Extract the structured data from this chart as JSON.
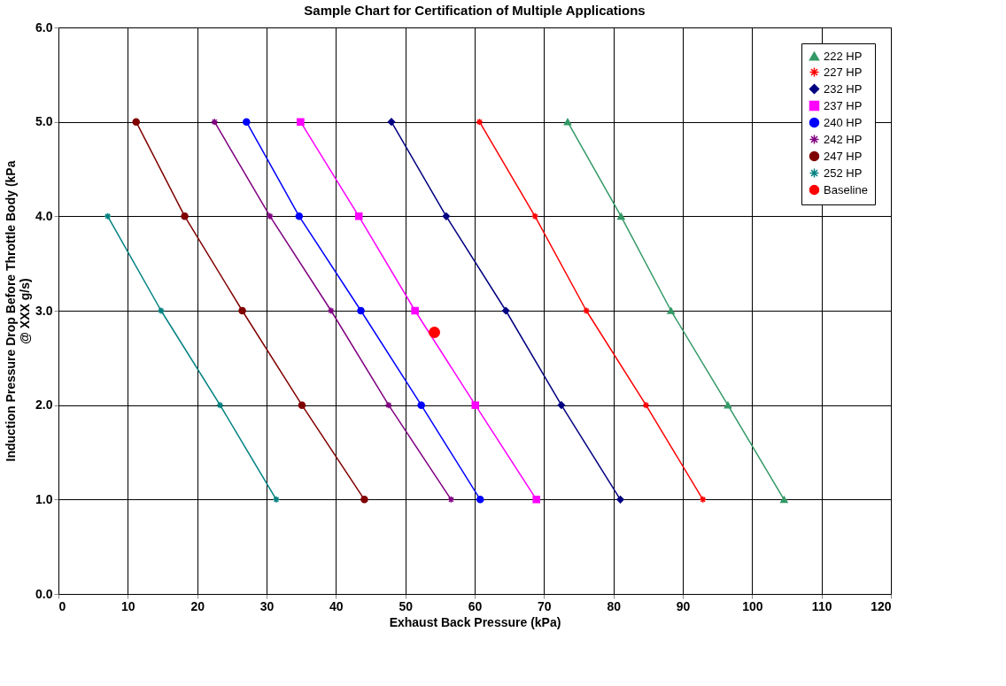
{
  "chart_data": {
    "type": "line",
    "title": "Sample Chart for Certification of Multiple Applications",
    "xlabel": "Exhaust Back Pressure (kPa)",
    "ylabel": "Induction Pressure Drop Before Throttle Body  (kPa @ XXX g/s)",
    "xlim": [
      0,
      120
    ],
    "xticks": [
      0,
      10,
      20,
      30,
      40,
      50,
      60,
      70,
      80,
      90,
      100,
      110,
      120
    ],
    "ylim": [
      0,
      6
    ],
    "yticks": [
      {
        "value": 0,
        "label": "0.0"
      },
      {
        "value": 1,
        "label": "1.0"
      },
      {
        "value": 2,
        "label": "2.0"
      },
      {
        "value": 3,
        "label": "3.0"
      },
      {
        "value": 4,
        "label": "4.0"
      },
      {
        "value": 5,
        "label": "5.0"
      },
      {
        "value": 6,
        "label": "6.0"
      }
    ],
    "grid": true,
    "legend": "top right",
    "series": [
      {
        "name": "222 HP",
        "color": "#339966",
        "marker": "triangle",
        "x": [
          73.4,
          81.1,
          88.3,
          96.5,
          104.6
        ],
        "values": [
          5,
          4,
          3,
          2,
          1
        ]
      },
      {
        "name": "227 HP",
        "color": "#ff0000",
        "marker": "cross",
        "x": [
          60.7,
          68.7,
          76.1,
          84.7,
          92.9
        ],
        "values": [
          5,
          4,
          3,
          2,
          1
        ]
      },
      {
        "name": "232 HP",
        "color": "#000080",
        "marker": "diamond",
        "x": [
          48.0,
          55.9,
          64.5,
          72.5,
          81.0
        ],
        "values": [
          5,
          4,
          3,
          2,
          1
        ]
      },
      {
        "name": "237 HP",
        "color": "#ff00ff",
        "marker": "square",
        "x": [
          34.9,
          43.3,
          51.4,
          60.1,
          68.9
        ],
        "values": [
          5,
          4,
          3,
          2,
          1
        ]
      },
      {
        "name": "240 HP",
        "color": "#0000ff",
        "marker": "circle",
        "x": [
          27.1,
          34.7,
          43.6,
          52.3,
          60.8
        ],
        "values": [
          5,
          4,
          3,
          2,
          1
        ]
      },
      {
        "name": "242 HP",
        "color": "#800080",
        "marker": "cross",
        "x": [
          22.5,
          30.5,
          39.3,
          47.6,
          56.6
        ],
        "values": [
          5,
          4,
          3,
          2,
          1
        ]
      },
      {
        "name": "247 HP",
        "color": "#800000",
        "marker": "circle",
        "x": [
          11.2,
          18.2,
          26.5,
          35.1,
          44.1
        ],
        "values": [
          5,
          4,
          3,
          2,
          1
        ]
      },
      {
        "name": "252 HP",
        "color": "#008080",
        "marker": "cross",
        "x": [
          7.1,
          14.8,
          23.3,
          31.4
        ],
        "values": [
          4,
          3,
          2,
          1
        ]
      },
      {
        "name": "Baseline",
        "type": "scatter",
        "color": "#ff0000",
        "marker": "circle",
        "x": [
          54.2
        ],
        "values": [
          2.77
        ]
      }
    ]
  }
}
